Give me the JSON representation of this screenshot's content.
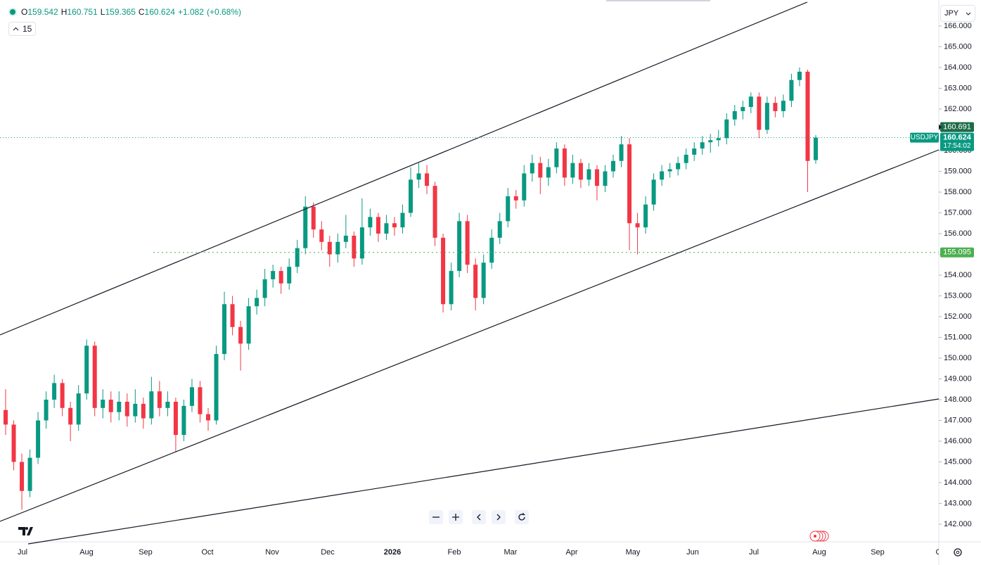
{
  "chart_data": {
    "type": "candlestick",
    "symbol": "USDJPY",
    "interval": "15",
    "currency": "JPY",
    "change": "+1.082",
    "change_pct": "(+0.68%)",
    "ohlc_letters": [
      "O",
      "H",
      "L",
      "C"
    ],
    "countdown": "17:54:02",
    "up_color": "#089981",
    "down_color": "#f23645",
    "grid": false,
    "ylim": [
      142,
      166
    ],
    "yticks": [
      {
        "value": 142,
        "label": "142.000"
      },
      {
        "value": 143,
        "label": "143.000"
      },
      {
        "value": 144,
        "label": "144.000"
      },
      {
        "value": 145,
        "label": "145.000"
      },
      {
        "value": 146,
        "label": "146.000"
      },
      {
        "value": 147,
        "label": "147.000"
      },
      {
        "value": 148,
        "label": "148.000"
      },
      {
        "value": 149,
        "label": "149.000"
      },
      {
        "value": 150,
        "label": "150.000"
      },
      {
        "value": 151,
        "label": "151.000"
      },
      {
        "value": 152,
        "label": "152.000"
      },
      {
        "value": 153,
        "label": "153.000"
      },
      {
        "value": 154,
        "label": "154.000"
      },
      {
        "value": 155,
        "label": "155.000"
      },
      {
        "value": 156,
        "label": "156.000"
      },
      {
        "value": 157,
        "label": "157.000"
      },
      {
        "value": 158,
        "label": "158.000"
      },
      {
        "value": 159,
        "label": "159.000"
      },
      {
        "value": 160,
        "label": "160.000"
      },
      {
        "value": 161,
        "label": "161.000"
      },
      {
        "value": 162,
        "label": "162.000"
      },
      {
        "value": 163,
        "label": "163.000"
      },
      {
        "value": 164,
        "label": "164.000"
      },
      {
        "value": 165,
        "label": "165.000"
      },
      {
        "value": 166,
        "label": "166.000"
      }
    ],
    "x_labels": [
      "Jul",
      "Aug",
      "Sep",
      "Oct",
      "Nov",
      "Dec",
      "2026",
      "Feb",
      "Mar",
      "Apr",
      "May",
      "Jun",
      "Jul",
      "Aug",
      "Sep",
      "Oct"
    ],
    "prev_close": 160.691,
    "level_line": 155.095,
    "ohlc": [
      [
        147.5,
        148.5,
        146.3,
        146.8
      ],
      [
        146.8,
        147.0,
        144.6,
        145.0
      ],
      [
        145.0,
        145.4,
        142.7,
        143.6
      ],
      [
        143.6,
        145.6,
        143.3,
        145.2
      ],
      [
        145.2,
        147.4,
        144.9,
        147.0
      ],
      [
        147.0,
        148.4,
        146.6,
        148.0
      ],
      [
        148.0,
        149.2,
        147.6,
        148.8
      ],
      [
        148.8,
        149.0,
        147.2,
        147.6
      ],
      [
        147.6,
        147.9,
        146.0,
        146.8
      ],
      [
        146.8,
        148.7,
        146.5,
        148.3
      ],
      [
        148.3,
        150.9,
        148.0,
        150.6
      ],
      [
        150.6,
        150.8,
        147.2,
        147.6
      ],
      [
        147.6,
        148.5,
        147.1,
        148.0
      ],
      [
        148.0,
        148.4,
        146.9,
        147.4
      ],
      [
        147.4,
        148.4,
        147.0,
        147.9
      ],
      [
        147.9,
        148.3,
        146.7,
        147.2
      ],
      [
        147.2,
        148.5,
        146.9,
        147.8
      ],
      [
        147.8,
        148.1,
        146.6,
        147.1
      ],
      [
        147.1,
        149.1,
        146.8,
        148.4
      ],
      [
        148.4,
        148.9,
        147.2,
        147.6
      ],
      [
        147.6,
        148.4,
        147.2,
        147.9
      ],
      [
        147.9,
        148.1,
        145.5,
        146.3
      ],
      [
        146.3,
        148.0,
        146.0,
        147.7
      ],
      [
        147.7,
        149.0,
        147.4,
        148.6
      ],
      [
        148.6,
        148.9,
        146.9,
        147.3
      ],
      [
        147.3,
        147.6,
        146.5,
        147.0
      ],
      [
        147.0,
        150.6,
        146.8,
        150.2
      ],
      [
        150.2,
        153.2,
        149.9,
        152.6
      ],
      [
        152.6,
        153.0,
        151.1,
        151.5
      ],
      [
        151.5,
        151.8,
        149.4,
        150.7
      ],
      [
        150.7,
        152.9,
        150.4,
        152.5
      ],
      [
        152.5,
        153.3,
        152.1,
        152.9
      ],
      [
        152.9,
        154.3,
        152.5,
        153.8
      ],
      [
        153.8,
        154.5,
        153.4,
        154.2
      ],
      [
        154.2,
        154.4,
        153.1,
        153.6
      ],
      [
        153.6,
        154.8,
        153.3,
        154.4
      ],
      [
        154.4,
        155.7,
        154.1,
        155.3
      ],
      [
        155.3,
        157.8,
        155.0,
        157.3
      ],
      [
        157.3,
        157.5,
        155.8,
        156.2
      ],
      [
        156.2,
        156.6,
        155.2,
        155.6
      ],
      [
        155.6,
        155.9,
        154.4,
        155.0
      ],
      [
        155.0,
        156.0,
        154.6,
        155.6
      ],
      [
        155.6,
        156.9,
        155.3,
        155.9
      ],
      [
        155.9,
        156.1,
        154.4,
        154.8
      ],
      [
        154.8,
        157.7,
        154.5,
        156.3
      ],
      [
        156.3,
        157.2,
        155.9,
        156.8
      ],
      [
        156.8,
        157.0,
        155.6,
        156.0
      ],
      [
        156.0,
        156.9,
        155.7,
        156.5
      ],
      [
        156.5,
        156.8,
        155.9,
        156.3
      ],
      [
        156.3,
        157.4,
        156.0,
        157.0
      ],
      [
        157.0,
        159.2,
        156.8,
        158.6
      ],
      [
        158.6,
        159.4,
        158.2,
        158.9
      ],
      [
        158.9,
        159.3,
        157.9,
        158.3
      ],
      [
        158.3,
        158.5,
        155.4,
        155.8
      ],
      [
        155.8,
        156.0,
        152.2,
        152.6
      ],
      [
        152.6,
        154.6,
        152.3,
        154.2
      ],
      [
        154.2,
        157.0,
        153.9,
        156.6
      ],
      [
        156.6,
        156.9,
        154.1,
        154.5
      ],
      [
        154.5,
        154.8,
        152.3,
        152.9
      ],
      [
        152.9,
        155.0,
        152.6,
        154.6
      ],
      [
        154.6,
        156.2,
        154.3,
        155.8
      ],
      [
        155.8,
        157.0,
        155.5,
        156.6
      ],
      [
        156.6,
        158.2,
        156.3,
        157.8
      ],
      [
        157.8,
        158.1,
        157.2,
        157.6
      ],
      [
        157.6,
        159.3,
        157.3,
        158.9
      ],
      [
        158.9,
        159.8,
        158.5,
        159.4
      ],
      [
        159.4,
        159.7,
        157.9,
        158.7
      ],
      [
        158.7,
        159.6,
        158.3,
        159.2
      ],
      [
        159.2,
        160.4,
        158.9,
        160.1
      ],
      [
        160.1,
        160.3,
        158.3,
        158.7
      ],
      [
        158.7,
        159.8,
        158.4,
        159.4
      ],
      [
        159.4,
        159.6,
        158.2,
        158.6
      ],
      [
        158.6,
        159.4,
        158.3,
        159.1
      ],
      [
        159.1,
        159.3,
        157.6,
        158.3
      ],
      [
        158.3,
        159.3,
        158.0,
        159.0
      ],
      [
        159.0,
        159.8,
        158.7,
        159.5
      ],
      [
        159.5,
        160.7,
        159.2,
        160.3
      ],
      [
        160.3,
        160.6,
        155.2,
        156.5
      ],
      [
        156.5,
        157.0,
        155.0,
        156.3
      ],
      [
        156.3,
        157.8,
        156.0,
        157.4
      ],
      [
        157.4,
        158.9,
        157.1,
        158.6
      ],
      [
        158.6,
        159.3,
        158.3,
        159.0
      ],
      [
        159.0,
        159.4,
        158.7,
        159.1
      ],
      [
        159.1,
        159.7,
        158.8,
        159.4
      ],
      [
        159.4,
        160.1,
        159.1,
        159.8
      ],
      [
        159.8,
        160.4,
        159.5,
        160.1
      ],
      [
        160.1,
        160.7,
        159.8,
        160.4
      ],
      [
        160.4,
        160.8,
        159.9,
        160.5
      ],
      [
        160.5,
        161.0,
        160.2,
        160.6
      ],
      [
        160.6,
        161.8,
        160.3,
        161.5
      ],
      [
        161.5,
        162.2,
        161.2,
        161.9
      ],
      [
        161.9,
        162.4,
        161.5,
        162.1
      ],
      [
        162.1,
        162.8,
        161.8,
        162.6
      ],
      [
        162.6,
        162.8,
        160.6,
        161.0
      ],
      [
        161.0,
        162.6,
        160.8,
        162.3
      ],
      [
        162.3,
        162.6,
        161.6,
        161.9
      ],
      [
        161.9,
        162.7,
        161.6,
        162.4
      ],
      [
        162.4,
        163.7,
        162.1,
        163.4
      ],
      [
        163.4,
        164.0,
        163.1,
        163.8
      ],
      [
        163.8,
        163.9,
        158.0,
        159.5
      ],
      [
        159.542,
        160.751,
        159.365,
        160.624
      ]
    ]
  }
}
